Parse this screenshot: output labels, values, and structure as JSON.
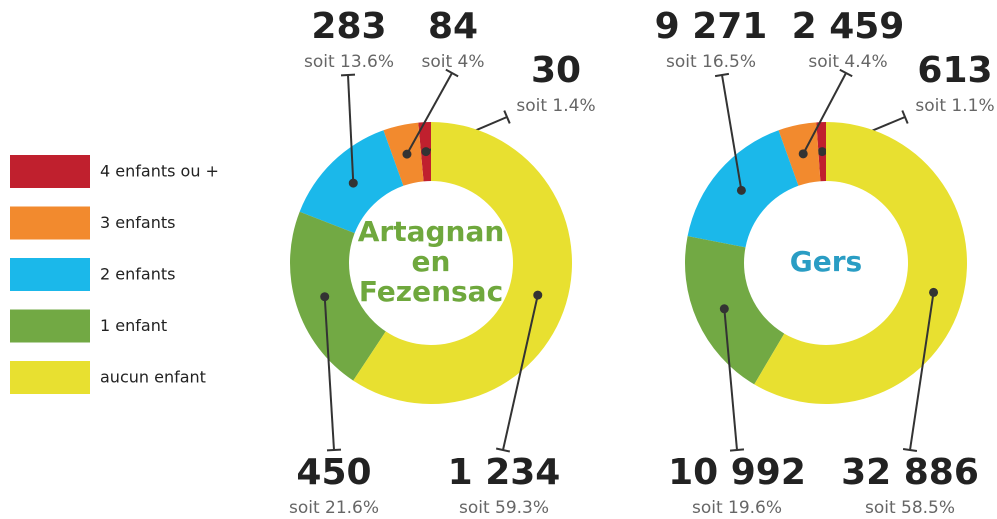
{
  "chart_data": [
    {
      "type": "donut",
      "title_lines": [
        "Artagnan",
        "en",
        "Fezensac"
      ],
      "title_color": "#6fa83d",
      "categories": [
        "4 enfants ou +",
        "3 enfants",
        "2 enfants",
        "1 enfant",
        "aucun enfant"
      ],
      "colors": [
        "#c0202e",
        "#f28a2e",
        "#1bb8ea",
        "#72a944",
        "#e8e030"
      ],
      "values": [
        30,
        84,
        283,
        450,
        1234
      ],
      "value_labels": [
        "30",
        "84",
        "283",
        "450",
        "1 234"
      ],
      "percent_labels": [
        "soit 1.4%",
        "soit 4%",
        "soit 13.6%",
        "soit 21.6%",
        "soit 59.3%"
      ]
    },
    {
      "type": "donut",
      "title_lines": [
        "Gers"
      ],
      "title_color": "#2a9dc4",
      "categories": [
        "4 enfants ou +",
        "3 enfants",
        "2 enfants",
        "1 enfant",
        "aucun enfant"
      ],
      "colors": [
        "#c0202e",
        "#f28a2e",
        "#1bb8ea",
        "#72a944",
        "#e8e030"
      ],
      "values": [
        613,
        2459,
        9271,
        10992,
        32886
      ],
      "value_labels": [
        "613",
        "2 459",
        "9 271",
        "10 992",
        "32 886"
      ],
      "percent_labels": [
        "soit 1.1%",
        "soit 4.4%",
        "soit 16.5%",
        "soit 19.6%",
        "soit 58.5%"
      ]
    }
  ]
}
